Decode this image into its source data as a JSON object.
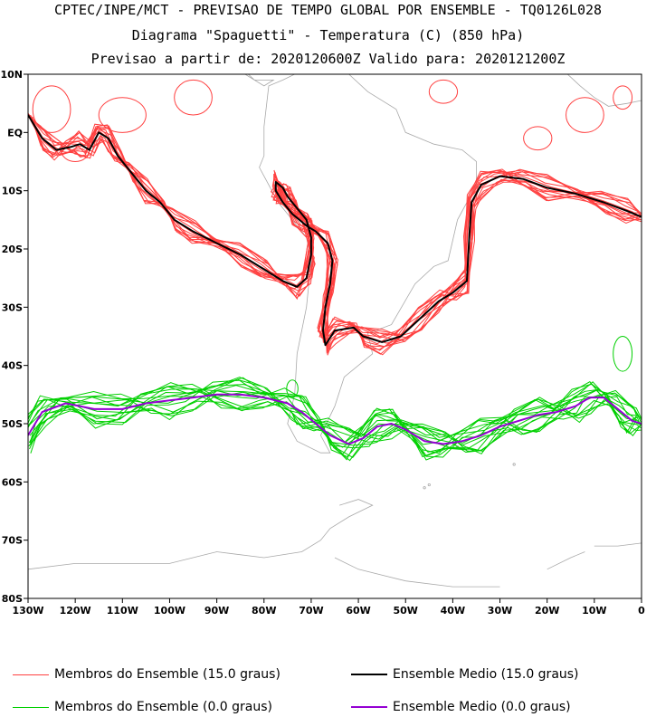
{
  "chart_data": {
    "type": "line",
    "title_lines": [
      "CPTEC/INPE/MCT - PREVISAO DE TEMPO GLOBAL POR ENSEMBLE - TQ0126L028",
      "Diagrama \"Spaguetti\" - Temperatura (C) (850 hPa)",
      "Previsao a partir de: 2020120600Z  Valido para: 2020121200Z"
    ],
    "xlim": [
      -130,
      0
    ],
    "ylim": [
      -80,
      10
    ],
    "x_ticks": [
      -130,
      -120,
      -110,
      -100,
      -90,
      -80,
      -70,
      -60,
      -50,
      -40,
      -30,
      -20,
      -10,
      0
    ],
    "x_tick_labels": [
      "130W",
      "120W",
      "110W",
      "100W",
      "90W",
      "80W",
      "70W",
      "60W",
      "50W",
      "40W",
      "30W",
      "20W",
      "10W",
      "0"
    ],
    "y_ticks": [
      10,
      0,
      -10,
      -20,
      -30,
      -40,
      -50,
      -60,
      -70,
      -80
    ],
    "y_tick_labels": [
      "10N",
      "EQ",
      "10S",
      "20S",
      "30S",
      "40S",
      "50S",
      "60S",
      "70S",
      "80S"
    ],
    "series": [
      {
        "name": "Ensemble Medio (15.0 graus)",
        "color": "#000000",
        "points": [
          [
            -130,
            3
          ],
          [
            -127,
            -1
          ],
          [
            -124,
            -3
          ],
          [
            -121,
            -2.5
          ],
          [
            -119,
            -2
          ],
          [
            -117,
            -3
          ],
          [
            -115,
            0
          ],
          [
            -113,
            -1
          ],
          [
            -111,
            -4
          ],
          [
            -108,
            -7
          ],
          [
            -105,
            -10
          ],
          [
            -102,
            -12
          ],
          [
            -99,
            -15
          ],
          [
            -95,
            -17
          ],
          [
            -90,
            -19
          ],
          [
            -85,
            -21
          ],
          [
            -80,
            -23.5
          ],
          [
            -76,
            -25.5
          ],
          [
            -73,
            -26.5
          ],
          [
            -71,
            -25
          ],
          [
            -70,
            -21
          ],
          [
            -70,
            -18
          ],
          [
            -71,
            -15
          ],
          [
            -73,
            -13
          ],
          [
            -75,
            -11
          ],
          [
            -76,
            -9.5
          ],
          [
            -77.5,
            -8.5
          ],
          [
            -77.5,
            -10
          ],
          [
            -76,
            -12
          ],
          [
            -74,
            -14
          ],
          [
            -71,
            -16
          ],
          [
            -69,
            -17
          ],
          [
            -66.5,
            -19
          ],
          [
            -65.5,
            -22
          ],
          [
            -66,
            -26
          ],
          [
            -67,
            -30
          ],
          [
            -67.5,
            -34
          ],
          [
            -67,
            -36.5
          ],
          [
            -65,
            -34
          ],
          [
            -61,
            -33.5
          ],
          [
            -59,
            -35
          ],
          [
            -55,
            -36
          ],
          [
            -51,
            -35
          ],
          [
            -47,
            -32
          ],
          [
            -43,
            -29
          ],
          [
            -40,
            -27.5
          ],
          [
            -37,
            -25.5
          ],
          [
            -36.5,
            -18
          ],
          [
            -36,
            -12
          ],
          [
            -34,
            -9
          ],
          [
            -30,
            -7.5
          ],
          [
            -25,
            -8
          ],
          [
            -20,
            -9.5
          ],
          [
            -14,
            -10.5
          ],
          [
            -8,
            -12
          ],
          [
            -3,
            -13.5
          ],
          [
            0,
            -14.5
          ]
        ]
      },
      {
        "name": "Ensemble Medio (0.0 graus)",
        "color": "#9400d3",
        "points": [
          [
            -130,
            -52
          ],
          [
            -127,
            -48
          ],
          [
            -122,
            -46.5
          ],
          [
            -116,
            -47.5
          ],
          [
            -110,
            -47.5
          ],
          [
            -105,
            -46.5
          ],
          [
            -100,
            -46
          ],
          [
            -95,
            -45.5
          ],
          [
            -90,
            -45
          ],
          [
            -85,
            -45
          ],
          [
            -80,
            -45.5
          ],
          [
            -75,
            -46.5
          ],
          [
            -72,
            -48
          ],
          [
            -69,
            -50
          ],
          [
            -66,
            -52
          ],
          [
            -62,
            -53.5
          ],
          [
            -59,
            -52.5
          ],
          [
            -56,
            -50.5
          ],
          [
            -53,
            -50
          ],
          [
            -50,
            -51
          ],
          [
            -46,
            -53
          ],
          [
            -42,
            -53.5
          ],
          [
            -38,
            -53
          ],
          [
            -34,
            -52
          ],
          [
            -30,
            -50.5
          ],
          [
            -26,
            -49.5
          ],
          [
            -22,
            -48.5
          ],
          [
            -18,
            -48
          ],
          [
            -14,
            -47
          ],
          [
            -11,
            -45.5
          ],
          [
            -8,
            -45.5
          ],
          [
            -5,
            -47.5
          ],
          [
            -2,
            -49.5
          ],
          [
            0,
            -50
          ]
        ]
      }
    ],
    "ensemble_members": [
      {
        "name": "Membros do Ensemble (15.0 graus)",
        "color": "#ff4040",
        "count": 15,
        "spread_deg": 2.5
      },
      {
        "name": "Membros do Ensemble (0.0 graus)",
        "color": "#00d000",
        "count": 15,
        "spread_deg": 3.5
      }
    ]
  },
  "legend": {
    "items": [
      {
        "label": "Membros do Ensemble (15.0 graus)",
        "color": "#ff4040"
      },
      {
        "label": "Ensemble Medio (15.0 graus)",
        "color": "#000000"
      },
      {
        "label": "Membros do Ensemble (0.0 graus)",
        "color": "#00d000"
      },
      {
        "label": "Ensemble Medio (0.0 graus)",
        "color": "#9400d3"
      }
    ]
  }
}
